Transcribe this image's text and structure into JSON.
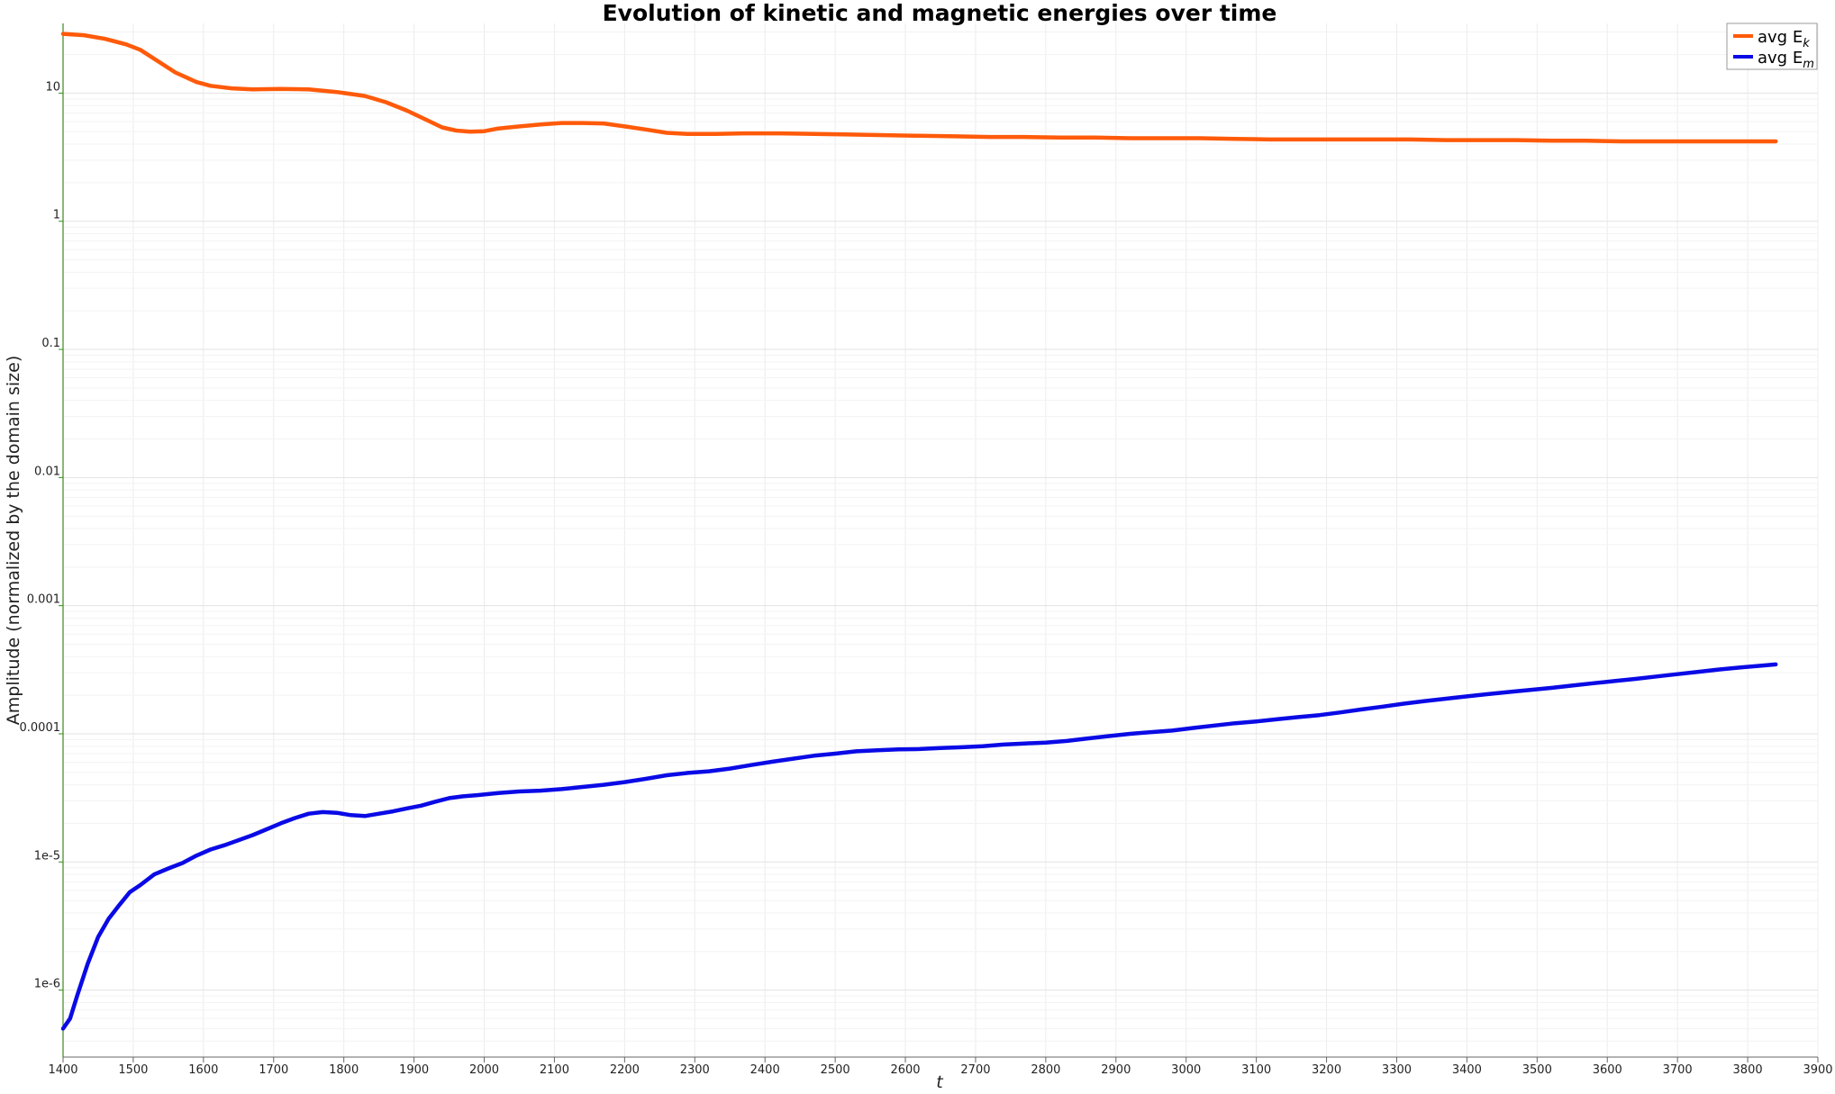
{
  "chart_data": {
    "type": "line",
    "title": "Evolution of kinetic and magnetic energies over time",
    "xlabel": "t",
    "ylabel": "Amplitude (normalized by the domain size)",
    "xscale": "linear",
    "yscale": "log",
    "xlim": [
      1400,
      3900
    ],
    "ylim": [
      3e-07,
      35
    ],
    "grid": true,
    "legend_position": "top-right",
    "x_ticks": [
      1400,
      1500,
      1600,
      1700,
      1800,
      1900,
      2000,
      2100,
      2200,
      2300,
      2400,
      2500,
      2600,
      2700,
      2800,
      2900,
      3000,
      3100,
      3200,
      3300,
      3400,
      3500,
      3600,
      3700,
      3800,
      3900
    ],
    "x_tick_labels": [
      "1400",
      "1500",
      "1600",
      "1700",
      "1800",
      "1900",
      "2000",
      "2100",
      "2200",
      "2300",
      "2400",
      "2500",
      "2600",
      "2700",
      "2800",
      "2900",
      "3000",
      "3100",
      "3200",
      "3300",
      "3400",
      "3500",
      "3600",
      "3700",
      "3800",
      "3900"
    ],
    "y_ticks": [
      1e-06,
      1e-05,
      0.0001,
      0.001,
      0.01,
      0.1,
      1,
      10
    ],
    "y_tick_labels": [
      "1e-6",
      "1e-5",
      "0.0001",
      "0.001",
      "0.01",
      "0.1",
      "1",
      "10"
    ],
    "series": [
      {
        "name": "avg E_k",
        "legend_main": "avg E",
        "legend_sub": "k",
        "color": "#ff5a0a",
        "points": [
          [
            1400,
            29.0
          ],
          [
            1430,
            28.3
          ],
          [
            1460,
            26.5
          ],
          [
            1490,
            24.0
          ],
          [
            1510,
            21.8
          ],
          [
            1530,
            18.5
          ],
          [
            1560,
            14.5
          ],
          [
            1590,
            12.2
          ],
          [
            1610,
            11.4
          ],
          [
            1640,
            10.9
          ],
          [
            1670,
            10.7
          ],
          [
            1710,
            10.8
          ],
          [
            1750,
            10.7
          ],
          [
            1790,
            10.2
          ],
          [
            1830,
            9.5
          ],
          [
            1860,
            8.5
          ],
          [
            1890,
            7.3
          ],
          [
            1920,
            6.1
          ],
          [
            1940,
            5.4
          ],
          [
            1960,
            5.1
          ],
          [
            1980,
            5.0
          ],
          [
            2000,
            5.05
          ],
          [
            2020,
            5.3
          ],
          [
            2050,
            5.5
          ],
          [
            2080,
            5.7
          ],
          [
            2110,
            5.85
          ],
          [
            2140,
            5.85
          ],
          [
            2170,
            5.8
          ],
          [
            2200,
            5.5
          ],
          [
            2230,
            5.2
          ],
          [
            2260,
            4.9
          ],
          [
            2290,
            4.8
          ],
          [
            2330,
            4.8
          ],
          [
            2370,
            4.85
          ],
          [
            2420,
            4.85
          ],
          [
            2470,
            4.8
          ],
          [
            2520,
            4.75
          ],
          [
            2570,
            4.7
          ],
          [
            2620,
            4.65
          ],
          [
            2670,
            4.6
          ],
          [
            2720,
            4.55
          ],
          [
            2770,
            4.55
          ],
          [
            2820,
            4.5
          ],
          [
            2870,
            4.5
          ],
          [
            2920,
            4.45
          ],
          [
            2970,
            4.45
          ],
          [
            3020,
            4.45
          ],
          [
            3070,
            4.4
          ],
          [
            3120,
            4.35
          ],
          [
            3170,
            4.35
          ],
          [
            3220,
            4.35
          ],
          [
            3270,
            4.35
          ],
          [
            3320,
            4.35
          ],
          [
            3370,
            4.3
          ],
          [
            3420,
            4.3
          ],
          [
            3470,
            4.3
          ],
          [
            3520,
            4.25
          ],
          [
            3570,
            4.25
          ],
          [
            3620,
            4.2
          ],
          [
            3670,
            4.2
          ],
          [
            3720,
            4.2
          ],
          [
            3770,
            4.2
          ],
          [
            3810,
            4.2
          ],
          [
            3840,
            4.2
          ]
        ]
      },
      {
        "name": "avg E_m",
        "legend_main": "avg E",
        "legend_sub": "m",
        "color": "#0a0ae6",
        "points": [
          [
            1400,
            5e-07
          ],
          [
            1410,
            6e-07
          ],
          [
            1420,
            9e-07
          ],
          [
            1435,
            1.6e-06
          ],
          [
            1450,
            2.6e-06
          ],
          [
            1465,
            3.6e-06
          ],
          [
            1480,
            4.6e-06
          ],
          [
            1495,
            5.8e-06
          ],
          [
            1510,
            6.6e-06
          ],
          [
            1530,
            8e-06
          ],
          [
            1550,
            8.9e-06
          ],
          [
            1570,
            9.8e-06
          ],
          [
            1590,
            1.12e-05
          ],
          [
            1610,
            1.25e-05
          ],
          [
            1630,
            1.35e-05
          ],
          [
            1650,
            1.48e-05
          ],
          [
            1670,
            1.62e-05
          ],
          [
            1690,
            1.8e-05
          ],
          [
            1710,
            2e-05
          ],
          [
            1730,
            2.2e-05
          ],
          [
            1750,
            2.38e-05
          ],
          [
            1770,
            2.45e-05
          ],
          [
            1790,
            2.42e-05
          ],
          [
            1810,
            2.32e-05
          ],
          [
            1830,
            2.28e-05
          ],
          [
            1850,
            2.38e-05
          ],
          [
            1870,
            2.48e-05
          ],
          [
            1890,
            2.62e-05
          ],
          [
            1910,
            2.75e-05
          ],
          [
            1930,
            2.95e-05
          ],
          [
            1950,
            3.15e-05
          ],
          [
            1970,
            3.25e-05
          ],
          [
            1990,
            3.32e-05
          ],
          [
            2020,
            3.45e-05
          ],
          [
            2050,
            3.55e-05
          ],
          [
            2080,
            3.6e-05
          ],
          [
            2110,
            3.7e-05
          ],
          [
            2140,
            3.85e-05
          ],
          [
            2170,
            4e-05
          ],
          [
            2200,
            4.2e-05
          ],
          [
            2230,
            4.45e-05
          ],
          [
            2260,
            4.75e-05
          ],
          [
            2290,
            4.95e-05
          ],
          [
            2320,
            5.1e-05
          ],
          [
            2350,
            5.35e-05
          ],
          [
            2380,
            5.7e-05
          ],
          [
            2410,
            6.05e-05
          ],
          [
            2440,
            6.4e-05
          ],
          [
            2470,
            6.75e-05
          ],
          [
            2500,
            7e-05
          ],
          [
            2530,
            7.3e-05
          ],
          [
            2560,
            7.45e-05
          ],
          [
            2590,
            7.55e-05
          ],
          [
            2620,
            7.6e-05
          ],
          [
            2650,
            7.75e-05
          ],
          [
            2680,
            7.85e-05
          ],
          [
            2710,
            8e-05
          ],
          [
            2740,
            8.25e-05
          ],
          [
            2770,
            8.4e-05
          ],
          [
            2800,
            8.55e-05
          ],
          [
            2830,
            8.8e-05
          ],
          [
            2860,
            9.2e-05
          ],
          [
            2890,
            9.6e-05
          ],
          [
            2920,
            0.0001
          ],
          [
            2950,
            0.000103
          ],
          [
            2980,
            0.000106
          ],
          [
            3010,
            0.000111
          ],
          [
            3040,
            0.000116
          ],
          [
            3070,
            0.000121
          ],
          [
            3100,
            0.000125
          ],
          [
            3130,
            0.00013
          ],
          [
            3160,
            0.000135
          ],
          [
            3190,
            0.00014
          ],
          [
            3220,
            0.000147
          ],
          [
            3250,
            0.000155
          ],
          [
            3280,
            0.000163
          ],
          [
            3310,
            0.000172
          ],
          [
            3340,
            0.00018
          ],
          [
            3370,
            0.000188
          ],
          [
            3400,
            0.000196
          ],
          [
            3430,
            0.000204
          ],
          [
            3460,
            0.000212
          ],
          [
            3490,
            0.00022
          ],
          [
            3520,
            0.000228
          ],
          [
            3550,
            0.000238
          ],
          [
            3580,
            0.000248
          ],
          [
            3610,
            0.000258
          ],
          [
            3640,
            0.000268
          ],
          [
            3670,
            0.00028
          ],
          [
            3700,
            0.000292
          ],
          [
            3730,
            0.000305
          ],
          [
            3760,
            0.000318
          ],
          [
            3790,
            0.00033
          ],
          [
            3820,
            0.000341
          ],
          [
            3840,
            0.000348
          ]
        ]
      }
    ]
  }
}
